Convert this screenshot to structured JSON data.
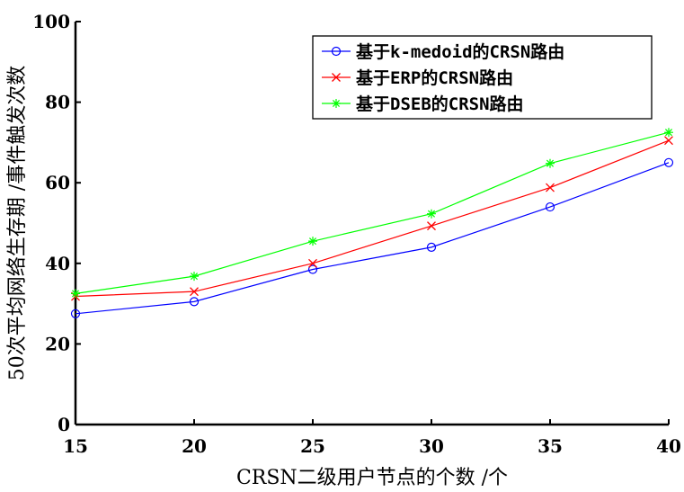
{
  "chart_data": {
    "type": "line",
    "xlabel": "CRSN二级用户节点的个数 /个",
    "ylabel": "50次平均网络生存期 /事件触发次数",
    "x": [
      15,
      20,
      25,
      30,
      35,
      40
    ],
    "xlim": [
      15,
      40
    ],
    "ylim": [
      0,
      100
    ],
    "xticks": [
      "15",
      "20",
      "25",
      "30",
      "35",
      "40"
    ],
    "yticks": [
      "0",
      "20",
      "40",
      "60",
      "80",
      "100"
    ],
    "grid": false,
    "legend_position": "top-right",
    "series": [
      {
        "name": "基于k-medoid的CRSN路由",
        "values": [
          27.5,
          30.5,
          38.5,
          44,
          54,
          65
        ],
        "color": "#0000ff",
        "marker": "circle"
      },
      {
        "name": "基于ERP的CRSN路由",
        "values": [
          31.8,
          33,
          40,
          49.3,
          58.8,
          70.5
        ],
        "color": "#ff0000",
        "marker": "x"
      },
      {
        "name": "基于DSEB的CRSN路由",
        "values": [
          32.5,
          36.8,
          45.5,
          52.3,
          64.8,
          72.5
        ],
        "color": "#00ff00",
        "marker": "star"
      }
    ]
  }
}
